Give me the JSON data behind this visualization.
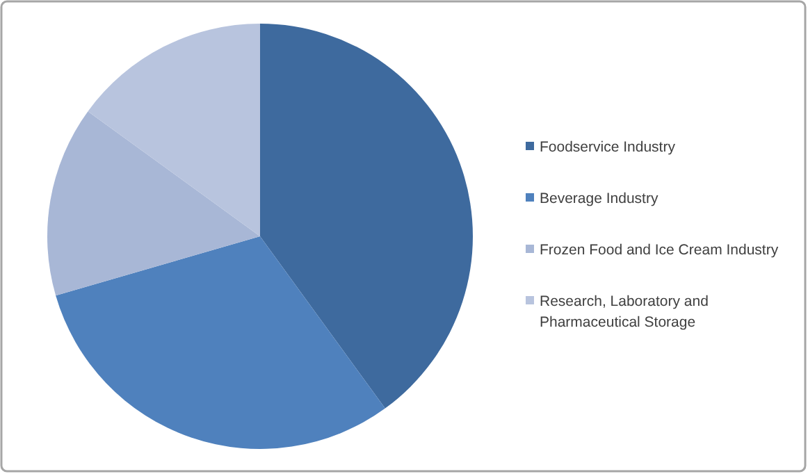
{
  "chart_data": {
    "type": "pie",
    "categories": [
      "Foodservice Industry",
      "Beverage Industry",
      "Frozen Food and Ice Cream Industry",
      "Research, Laboratory and Pharmaceutical Storage"
    ],
    "values": [
      40,
      30.5,
      14.5,
      15
    ],
    "colors": [
      "#3e6a9e",
      "#4f81bd",
      "#a8b7d6",
      "#b8c4de"
    ],
    "legend": "right"
  }
}
